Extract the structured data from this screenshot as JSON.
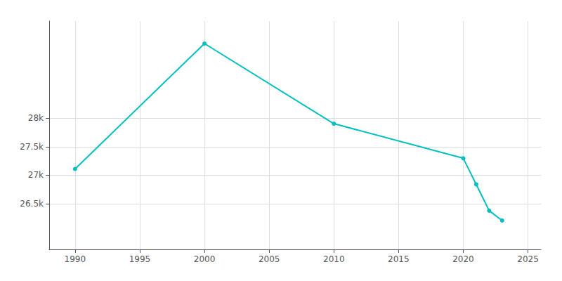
{
  "chart_data": {
    "type": "line",
    "x": [
      1990,
      2000,
      2010,
      2020,
      2021,
      2022,
      2023
    ],
    "values": [
      27109,
      29306,
      27902,
      27296,
      26839,
      26378,
      26205
    ],
    "color": "#00BFBF",
    "marker": "circle",
    "xlim": [
      1988,
      2026
    ],
    "xticks": [
      1990,
      1995,
      2000,
      2005,
      2010,
      2015,
      2020,
      2025
    ],
    "ylim": [
      25700,
      29700
    ],
    "yticks": [
      {
        "value": 26500,
        "label": "26.5k"
      },
      {
        "value": 27000,
        "label": "27k"
      },
      {
        "value": 27500,
        "label": "27.5k"
      },
      {
        "value": 28000,
        "label": "28k"
      }
    ],
    "grid": true
  }
}
